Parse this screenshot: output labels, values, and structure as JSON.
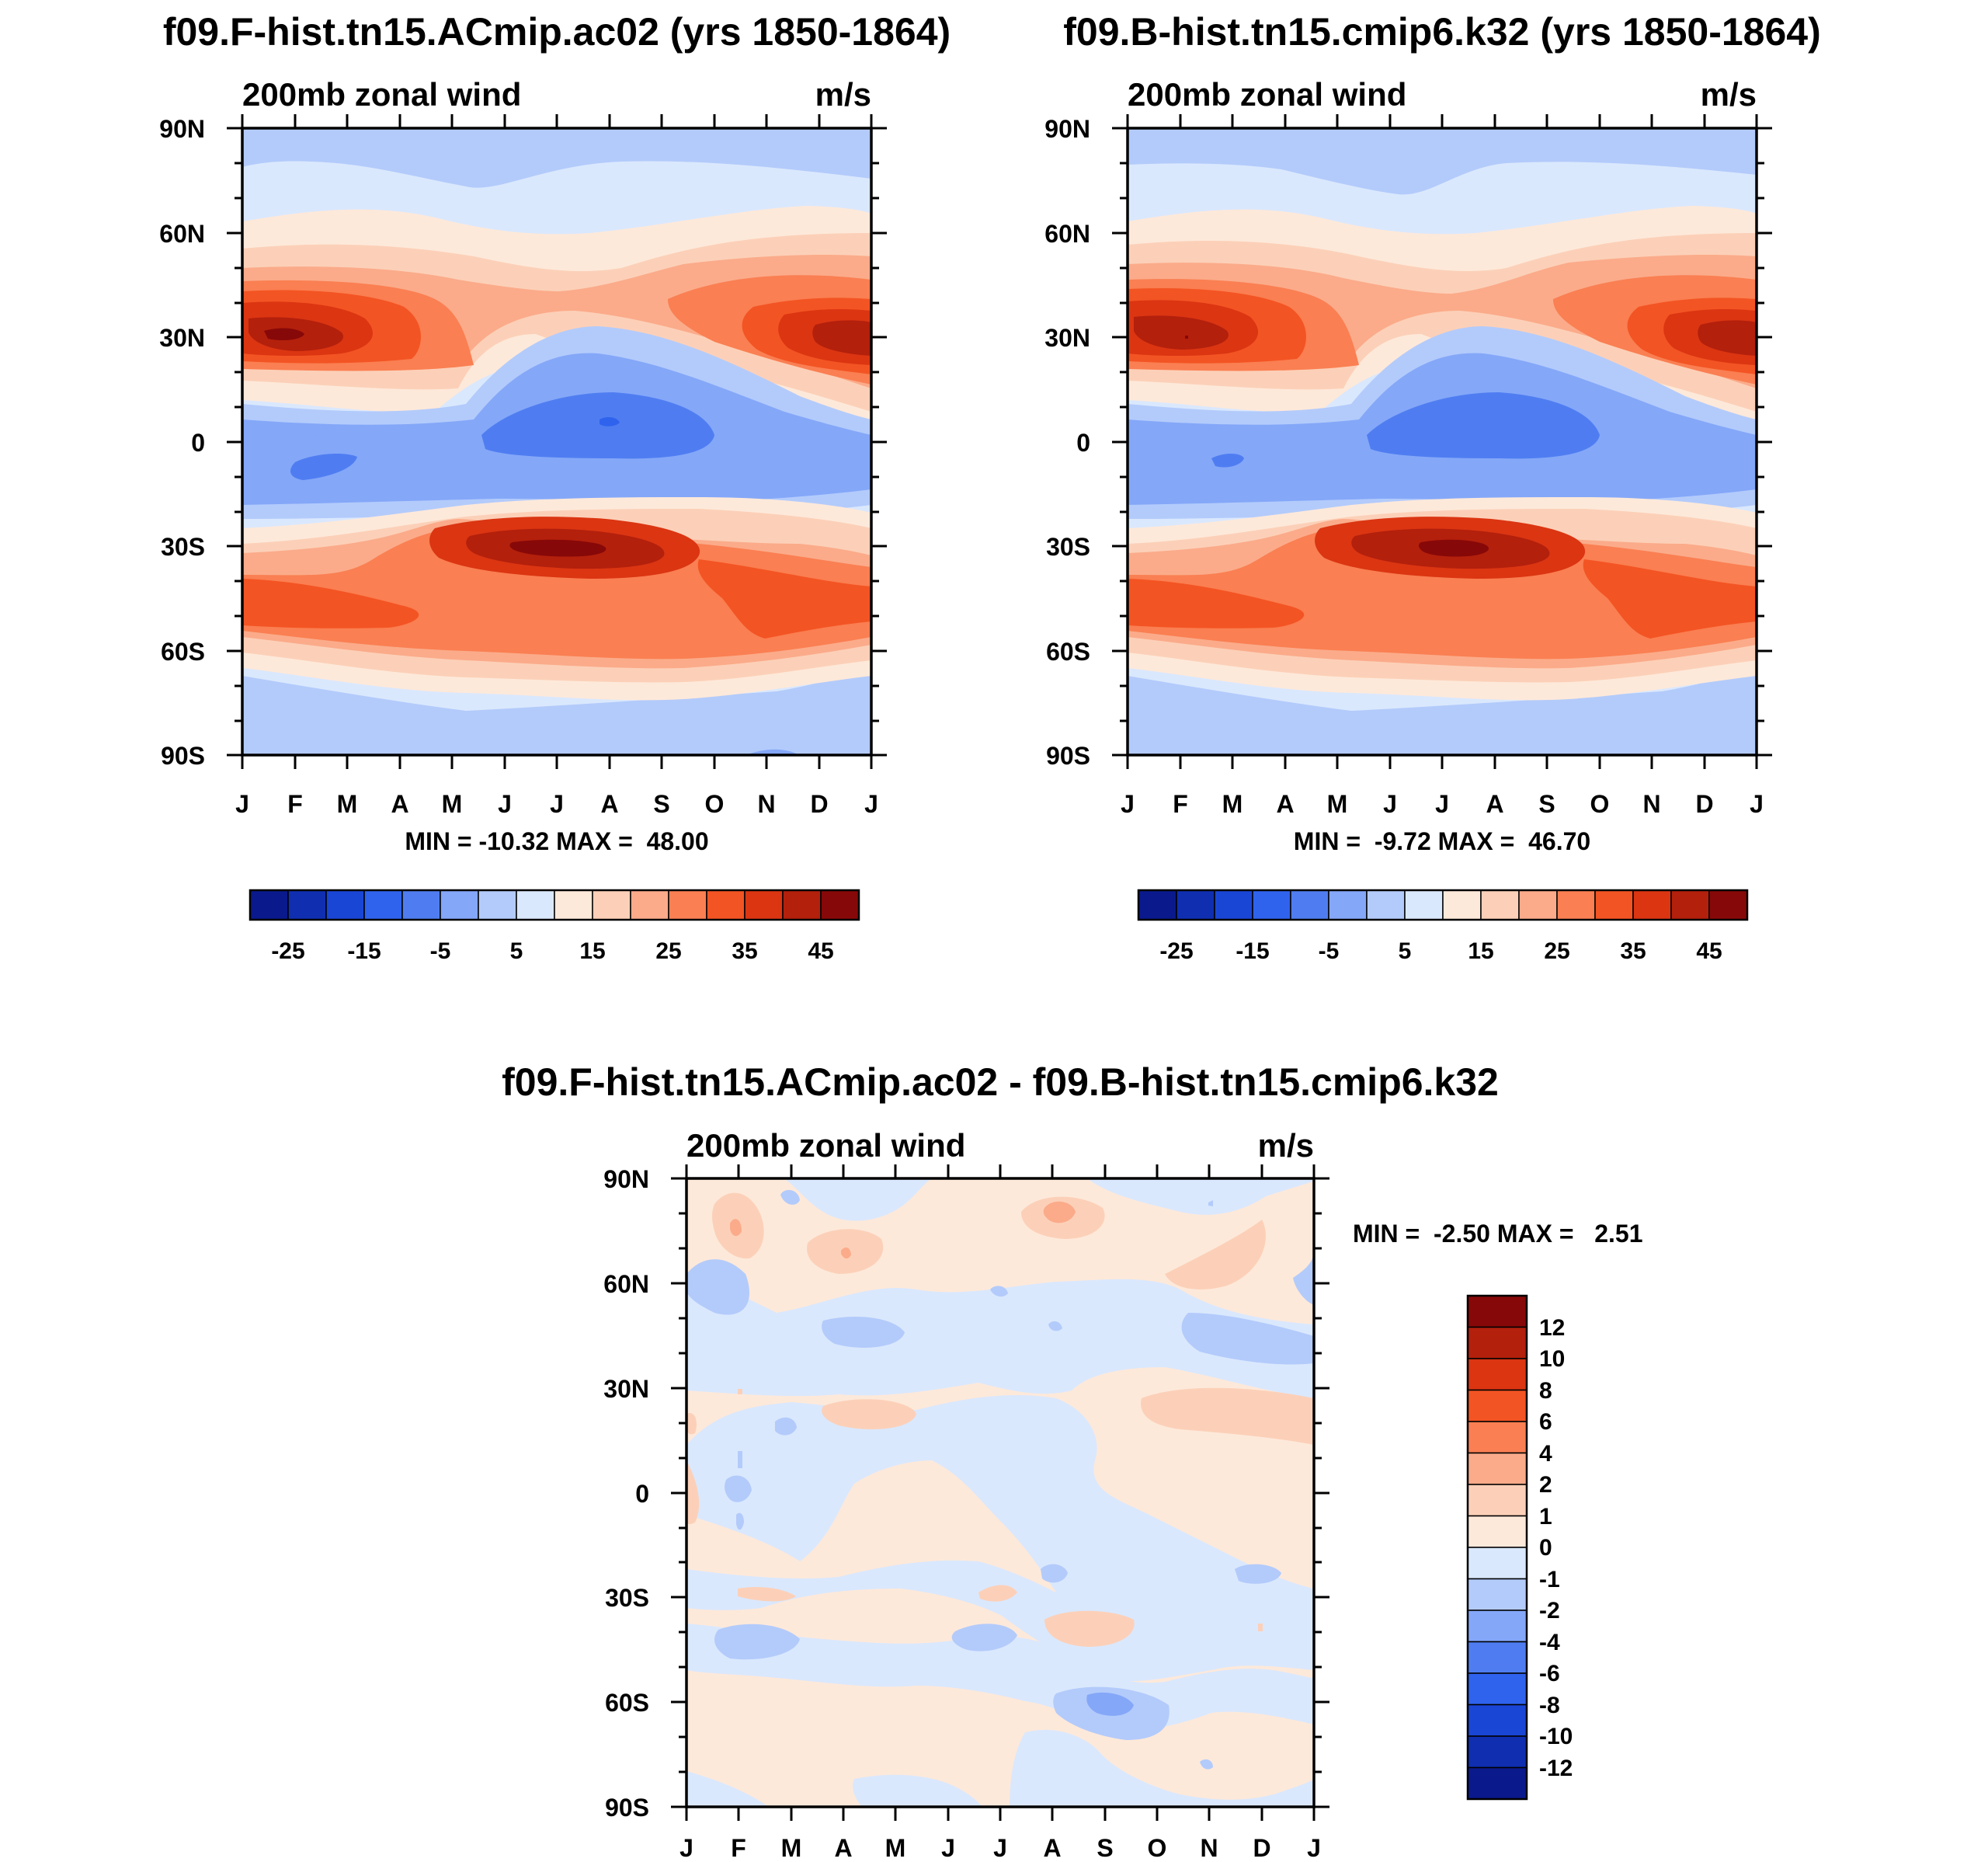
{
  "chart_data": [
    {
      "type": "contour",
      "title": "f09.F-hist.tn15.ACmip.ac02 (yrs 1850-1864)",
      "left_label": "200mb zonal wind",
      "units": "m/s",
      "x_tick_labels": [
        "J",
        "F",
        "M",
        "A",
        "M",
        "J",
        "J",
        "A",
        "S",
        "O",
        "N",
        "D",
        "J"
      ],
      "y_tick_labels": [
        "90N",
        "60N",
        "30N",
        "0",
        "30S",
        "60S",
        "90S"
      ],
      "stats": "MIN = -10.32 MAX =  48.00",
      "colorbar": {
        "orientation": "horizontal",
        "labels": [
          "-25",
          "-15",
          "-5",
          "5",
          "15",
          "25",
          "35",
          "45"
        ],
        "colors": [
          "#0a1a8c",
          "#0f2fb0",
          "#1a46d6",
          "#2f63ee",
          "#4f7df1",
          "#84a7f8",
          "#b3cbfb",
          "#dae8fd",
          "#fde9da",
          "#fcd0b8",
          "#fbab8a",
          "#fa7f52",
          "#f35423",
          "#db3512",
          "#b3200c",
          "#870808"
        ]
      },
      "features": {
        "nh_jet_max_ms": 48.0,
        "sh_jet_max_ms": 47.0,
        "tropical_easterly_min_ms": -10.32
      }
    },
    {
      "type": "contour",
      "title": "f09.B-hist.tn15.cmip6.k32 (yrs 1850-1864)",
      "left_label": "200mb zonal wind",
      "units": "m/s",
      "x_tick_labels": [
        "J",
        "F",
        "M",
        "A",
        "M",
        "J",
        "J",
        "A",
        "S",
        "O",
        "N",
        "D",
        "J"
      ],
      "y_tick_labels": [
        "90N",
        "60N",
        "30N",
        "0",
        "30S",
        "60S",
        "90S"
      ],
      "stats": "MIN =  -9.72 MAX =  46.70",
      "colorbar": {
        "orientation": "horizontal",
        "labels": [
          "-25",
          "-15",
          "-5",
          "5",
          "15",
          "25",
          "35",
          "45"
        ],
        "colors": [
          "#0a1a8c",
          "#0f2fb0",
          "#1a46d6",
          "#2f63ee",
          "#4f7df1",
          "#84a7f8",
          "#b3cbfb",
          "#dae8fd",
          "#fde9da",
          "#fcd0b8",
          "#fbab8a",
          "#fa7f52",
          "#f35423",
          "#db3512",
          "#b3200c",
          "#870808"
        ]
      },
      "features": {
        "nh_jet_max_ms": 46.7,
        "sh_jet_max_ms": 46.0,
        "tropical_easterly_min_ms": -9.72
      }
    },
    {
      "type": "contour",
      "title": "f09.F-hist.tn15.ACmip.ac02 - f09.B-hist.tn15.cmip6.k32",
      "left_label": "200mb zonal wind",
      "units": "m/s",
      "x_tick_labels": [
        "J",
        "F",
        "M",
        "A",
        "M",
        "J",
        "J",
        "A",
        "S",
        "O",
        "N",
        "D",
        "J"
      ],
      "y_tick_labels": [
        "90N",
        "60N",
        "30N",
        "0",
        "30S",
        "60S",
        "90S"
      ],
      "stats": "MIN =  -2.50 MAX =   2.51",
      "colorbar": {
        "orientation": "vertical",
        "labels": [
          "12",
          "10",
          "8",
          "6",
          "4",
          "2",
          "1",
          "0",
          "-1",
          "-2",
          "-4",
          "-6",
          "-8",
          "-10",
          "-12"
        ],
        "colors": [
          "#870808",
          "#b3200c",
          "#db3512",
          "#f35423",
          "#fa7f52",
          "#fbab8a",
          "#fcd0b8",
          "#fde9da",
          "#dae8fd",
          "#b3cbfb",
          "#84a7f8",
          "#4f7df1",
          "#2f63ee",
          "#1a46d6",
          "#0f2fb0",
          "#0a1a8c"
        ]
      }
    }
  ]
}
